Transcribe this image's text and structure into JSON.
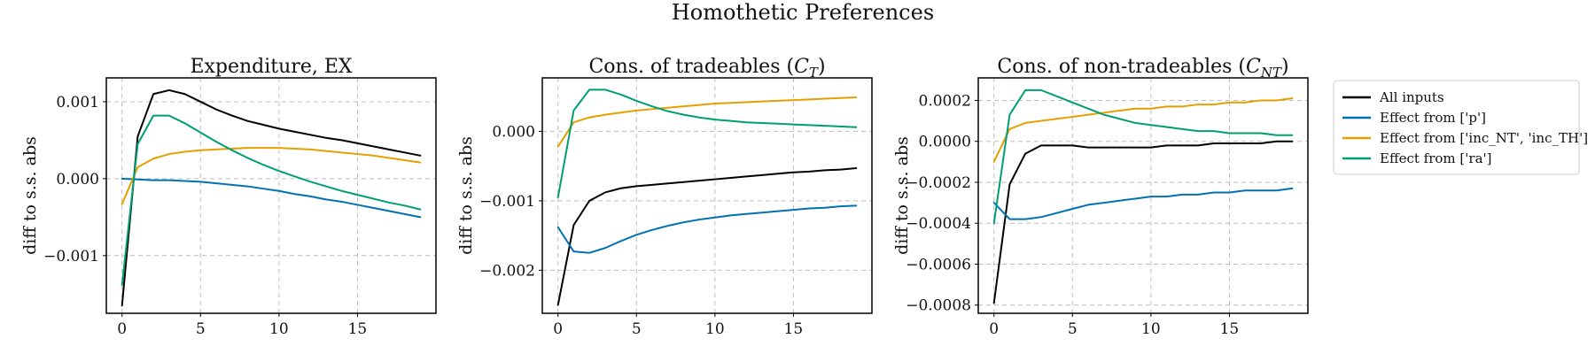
{
  "figure": {
    "title": "Homothetic Preferences"
  },
  "legend": {
    "placement": "right",
    "entries": [
      {
        "name": "All inputs",
        "color": "#000000"
      },
      {
        "name": "Effect from ['p']",
        "color": "#0072b2"
      },
      {
        "name": "Effect from ['inc_NT', 'inc_TH']",
        "color": "#e69f00"
      },
      {
        "name": "Effect from ['ra']",
        "color": "#009e73"
      }
    ]
  },
  "chart_data": [
    {
      "type": "line",
      "title": "Expenditure, EX",
      "ylabel": "diff to s.s. abs",
      "xlim": [
        -1,
        20
      ],
      "ylim": [
        -0.00175,
        0.00131
      ],
      "xticks": [
        0,
        5,
        10,
        15
      ],
      "xtick_labels": [
        "0",
        "5",
        "10",
        "15"
      ],
      "yticks": [
        -0.001,
        0.0,
        0.001
      ],
      "ytick_labels": [
        "−0.001",
        "0.000",
        "0.001"
      ],
      "x": [
        0,
        1,
        2,
        3,
        4,
        5,
        6,
        7,
        8,
        9,
        10,
        11,
        12,
        13,
        14,
        15,
        16,
        17,
        18,
        19
      ],
      "series": [
        {
          "name": "All inputs",
          "color": "#000000",
          "values": [
            -0.00165,
            0.00055,
            0.0011,
            0.00115,
            0.0011,
            0.001,
            0.0009,
            0.00082,
            0.00075,
            0.0007,
            0.00065,
            0.00061,
            0.00057,
            0.00053,
            0.0005,
            0.00046,
            0.00042,
            0.00038,
            0.00034,
            0.0003
          ]
        },
        {
          "name": "Effect from ['p']",
          "color": "#0072b2",
          "values": [
            0.0,
            -1e-05,
            -2e-05,
            -2e-05,
            -3e-05,
            -4e-05,
            -6e-05,
            -8e-05,
            -0.0001,
            -0.00013,
            -0.00016,
            -0.0002,
            -0.00023,
            -0.00027,
            -0.0003,
            -0.00034,
            -0.00038,
            -0.00042,
            -0.00046,
            -0.0005
          ]
        },
        {
          "name": "Effect from ['inc_NT', 'inc_TH']",
          "color": "#e69f00",
          "values": [
            -0.00033,
            0.00015,
            0.00026,
            0.00032,
            0.00035,
            0.00037,
            0.00038,
            0.00039,
            0.0004,
            0.0004,
            0.0004,
            0.00039,
            0.00038,
            0.00036,
            0.00034,
            0.00032,
            0.0003,
            0.00027,
            0.00024,
            0.00021
          ]
        },
        {
          "name": "Effect from ['ra']",
          "color": "#009e73",
          "values": [
            -0.00138,
            0.00045,
            0.00082,
            0.00082,
            0.00072,
            0.0006,
            0.00048,
            0.00037,
            0.00027,
            0.00018,
            0.0001,
            3e-05,
            -4e-05,
            -0.0001,
            -0.00016,
            -0.00021,
            -0.00026,
            -0.00031,
            -0.00035,
            -0.0004
          ]
        }
      ]
    },
    {
      "type": "line",
      "title": "Cons. of tradeables (C_T)",
      "ylabel": "diff to s.s. abs",
      "xlim": [
        -1,
        20
      ],
      "ylim": [
        -0.00262,
        0.00077
      ],
      "xticks": [
        0,
        5,
        10,
        15
      ],
      "xtick_labels": [
        "0",
        "5",
        "10",
        "15"
      ],
      "yticks": [
        -0.002,
        -0.001,
        0.0
      ],
      "ytick_labels": [
        "−0.002",
        "−0.001",
        "0.000"
      ],
      "x": [
        0,
        1,
        2,
        3,
        4,
        5,
        6,
        7,
        8,
        9,
        10,
        11,
        12,
        13,
        14,
        15,
        16,
        17,
        18,
        19
      ],
      "series": [
        {
          "name": "All inputs",
          "color": "#000000",
          "values": [
            -0.0025,
            -0.00135,
            -0.001,
            -0.00088,
            -0.00082,
            -0.00079,
            -0.00077,
            -0.00075,
            -0.00073,
            -0.00071,
            -0.00069,
            -0.00067,
            -0.00065,
            -0.00063,
            -0.00061,
            -0.00059,
            -0.00058,
            -0.00056,
            -0.00055,
            -0.00053
          ]
        },
        {
          "name": "Effect from ['p']",
          "color": "#0072b2",
          "values": [
            -0.00138,
            -0.00173,
            -0.00175,
            -0.00168,
            -0.00158,
            -0.00149,
            -0.00142,
            -0.00136,
            -0.00131,
            -0.00127,
            -0.00124,
            -0.00121,
            -0.00119,
            -0.00117,
            -0.00115,
            -0.00113,
            -0.00111,
            -0.0011,
            -0.00108,
            -0.00107
          ]
        },
        {
          "name": "Effect from ['inc_NT', 'inc_TH']",
          "color": "#e69f00",
          "values": [
            -0.00022,
            0.00013,
            0.0002,
            0.00024,
            0.00027,
            0.0003,
            0.00032,
            0.00034,
            0.00036,
            0.00038,
            0.0004,
            0.00041,
            0.00042,
            0.00043,
            0.00044,
            0.00045,
            0.00046,
            0.00047,
            0.00048,
            0.00049
          ]
        },
        {
          "name": "Effect from ['ra']",
          "color": "#009e73",
          "values": [
            -0.00095,
            0.0003,
            0.0006,
            0.0006,
            0.00053,
            0.00044,
            0.00036,
            0.00029,
            0.00024,
            0.0002,
            0.00017,
            0.00015,
            0.00013,
            0.00012,
            0.00011,
            0.0001,
            9e-05,
            8e-05,
            7e-05,
            6e-05
          ]
        }
      ]
    },
    {
      "type": "line",
      "title": "Cons. of non-tradeables (C_NT)",
      "ylabel": "diff to s.s. abs",
      "xlim": [
        -1,
        20
      ],
      "ylim": [
        -0.00084,
        0.00031
      ],
      "xticks": [
        0,
        5,
        10,
        15
      ],
      "xtick_labels": [
        "0",
        "5",
        "10",
        "15"
      ],
      "yticks": [
        -0.0008,
        -0.0006,
        -0.0004,
        -0.0002,
        0.0,
        0.0002
      ],
      "ytick_labels": [
        "−0.0008",
        "−0.0006",
        "−0.0004",
        "−0.0002",
        "0.0000",
        "0.0002"
      ],
      "x": [
        0,
        1,
        2,
        3,
        4,
        5,
        6,
        7,
        8,
        9,
        10,
        11,
        12,
        13,
        14,
        15,
        16,
        17,
        18,
        19
      ],
      "series": [
        {
          "name": "All inputs",
          "color": "#000000",
          "values": [
            -0.00079,
            -0.00021,
            -6e-05,
            -2e-05,
            -2e-05,
            -2e-05,
            -3e-05,
            -3e-05,
            -3e-05,
            -3e-05,
            -3e-05,
            -2e-05,
            -2e-05,
            -2e-05,
            -1e-05,
            -1e-05,
            -1e-05,
            -1e-05,
            0.0,
            0.0
          ]
        },
        {
          "name": "Effect from ['p']",
          "color": "#0072b2",
          "values": [
            -0.0003,
            -0.00038,
            -0.00038,
            -0.00037,
            -0.00035,
            -0.00033,
            -0.00031,
            -0.0003,
            -0.00029,
            -0.00028,
            -0.00027,
            -0.00027,
            -0.00026,
            -0.00026,
            -0.00025,
            -0.00025,
            -0.00024,
            -0.00024,
            -0.00024,
            -0.00023
          ]
        },
        {
          "name": "Effect from ['inc_NT', 'inc_TH']",
          "color": "#e69f00",
          "values": [
            -0.0001,
            6e-05,
            9e-05,
            0.0001,
            0.00011,
            0.00012,
            0.00013,
            0.00014,
            0.00015,
            0.00016,
            0.00016,
            0.00017,
            0.00017,
            0.00018,
            0.00018,
            0.00019,
            0.00019,
            0.0002,
            0.0002,
            0.00021
          ]
        },
        {
          "name": "Effect from ['ra']",
          "color": "#009e73",
          "values": [
            -0.0004,
            0.00013,
            0.00025,
            0.00025,
            0.00022,
            0.00019,
            0.00016,
            0.00013,
            0.00011,
            9e-05,
            8e-05,
            7e-05,
            6e-05,
            5e-05,
            5e-05,
            4e-05,
            4e-05,
            4e-05,
            3e-05,
            3e-05
          ]
        }
      ]
    }
  ]
}
